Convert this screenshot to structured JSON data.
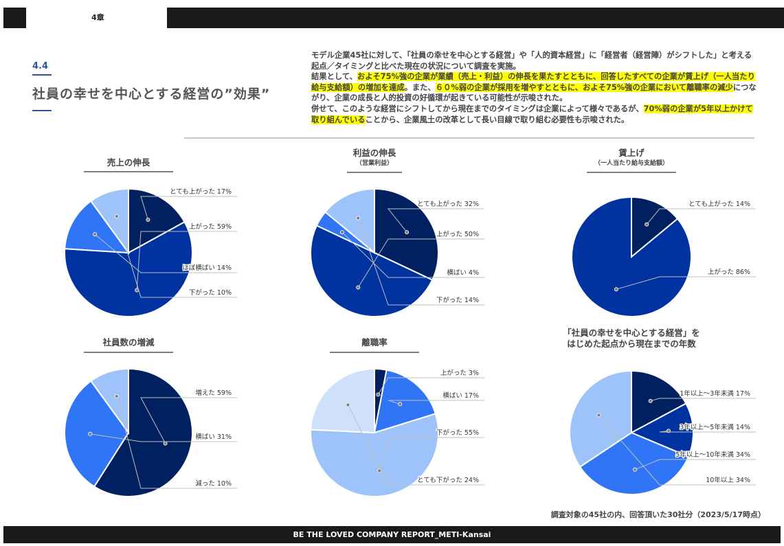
{
  "header": {
    "chapter": "4章",
    "footer": "BE THE LOVED COMPANY REPORT_METI-Kansai"
  },
  "section": {
    "number": "4.4",
    "title": "社員の幸せを中心とする経営の”効果”"
  },
  "intro": {
    "line1": "モデル企業45社に対して、「社員の幸せを中心とする経営」や「人的資本経営」に「経営者（経営陣）がシフトした」と考える起点／タイミングと比べた現在の状況について調査を実施。",
    "p2a": "結果として、",
    "p2b": "およそ75%強の企業が業績（売上・利益）の伸長を果たすとともに、回答したすべての企業が賃上げ（一人当たり給与支給額）の増加を達成",
    "p2c": "。また、",
    "p2d": "６０%弱の企業が採用を増やすとともに、およそ75%強の企業において離職率の減少",
    "p2e": "につながり、企業の成長と人的投資の好循環が起きている可能性が示唆された。",
    "p3a": "併せて、このような経営にシフトしてから現在までのタイミングは企業によって様々であるが、",
    "p3b": "70%弱の企業が5年以上かけて取り組んでいる",
    "p3c": "ことから、企業風土の改革として長い目線で取り組む必要性も示唆された。"
  },
  "footnote": "調査対象の45社の内、回答頂いた30社分（2023/5/17時点）",
  "chart_data": [
    {
      "type": "pie",
      "title": "売上の伸長",
      "subtitle": "",
      "categories": [
        "とても上がった",
        "上がった",
        "ほぼ横ばい",
        "下がった"
      ],
      "values": [
        17,
        59,
        14,
        10
      ],
      "colors": [
        "#002060",
        "#0033a0",
        "#2f75f5",
        "#9dc3fa"
      ]
    },
    {
      "type": "pie",
      "title": "利益の伸長",
      "subtitle": "（営業利益）",
      "categories": [
        "とても上がった",
        "上がった",
        "横ばい",
        "下がった"
      ],
      "values": [
        32,
        50,
        4,
        14
      ],
      "colors": [
        "#002060",
        "#0033a0",
        "#2f75f5",
        "#9dc3fa"
      ]
    },
    {
      "type": "pie",
      "title": "賃上げ",
      "subtitle": "（一人当たり給与支給額）",
      "categories": [
        "とても上がった",
        "上がった"
      ],
      "values": [
        14,
        86
      ],
      "colors": [
        "#002060",
        "#0033a0"
      ]
    },
    {
      "type": "pie",
      "title": "社員数の増減",
      "subtitle": "",
      "categories": [
        "増えた",
        "横ばい",
        "減った"
      ],
      "values": [
        59,
        31,
        10
      ],
      "colors": [
        "#002060",
        "#2f75f5",
        "#9dc3fa"
      ]
    },
    {
      "type": "pie",
      "title": "離職率",
      "subtitle": "",
      "categories": [
        "上がった",
        "横ばい",
        "下がった",
        "とても下がった"
      ],
      "values": [
        3,
        17,
        55,
        24
      ],
      "colors": [
        "#002060",
        "#2f75f5",
        "#9dc3fa",
        "#cfe0fb"
      ]
    },
    {
      "type": "pie",
      "title": "「社員の幸せを中心とする経営」を",
      "subtitle": "はじめた起点から現在までの年数",
      "categories": [
        "1年以上～3年未満",
        "3年以上～5年未満",
        "5年以上～10年未満",
        "10年以上"
      ],
      "values": [
        17,
        14,
        34,
        34
      ],
      "colors": [
        "#002060",
        "#0033a0",
        "#2f75f5",
        "#9dc3fa"
      ]
    }
  ]
}
